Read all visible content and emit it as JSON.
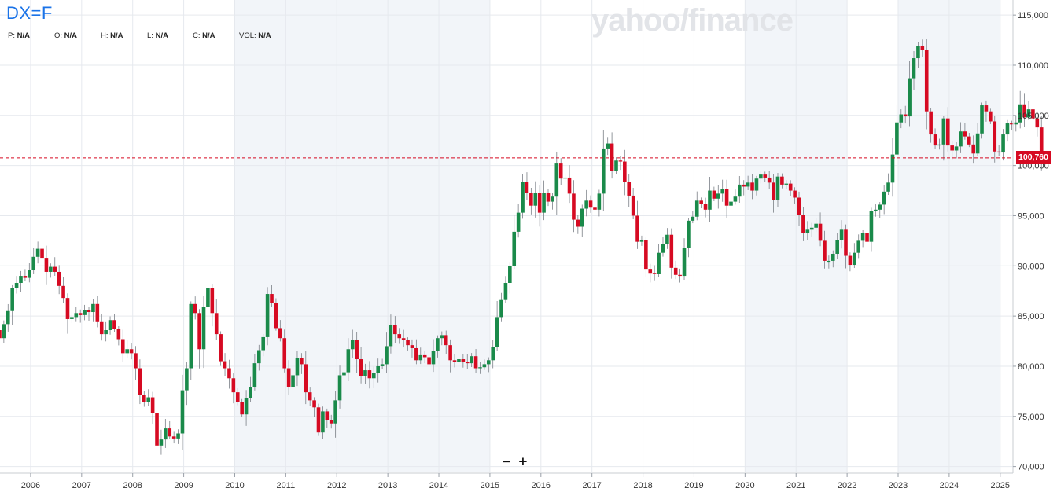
{
  "ticker": "DX=F",
  "ohlc": [
    {
      "key": "P:",
      "value": "N/A"
    },
    {
      "key": "O:",
      "value": "N/A"
    },
    {
      "key": "H:",
      "value": "N/A"
    },
    {
      "key": "L:",
      "value": "N/A"
    },
    {
      "key": "C:",
      "value": "N/A"
    },
    {
      "key": "VOL:",
      "value": "N/A"
    }
  ],
  "watermark": "yahoo/finance",
  "zoom": {
    "out": "−",
    "in": "+"
  },
  "colors": {
    "up": "#1a8a4a",
    "down": "#d60a22",
    "grid": "#e6e9ee",
    "band": "#f2f5f9",
    "axis_text": "#333333"
  },
  "chart_data": {
    "type": "candlestick",
    "title": "",
    "xlabel": "",
    "ylabel": "",
    "ylim": [
      69.5,
      116.5
    ],
    "xlim": [
      2005.4,
      2025.25
    ],
    "x_ticks": [
      "2006",
      "2007",
      "2008",
      "2009",
      "2010",
      "2011",
      "2012",
      "2013",
      "2014",
      "2015",
      "2016",
      "2017",
      "2018",
      "2019",
      "2020",
      "2021",
      "2022",
      "2023",
      "2024",
      "2025"
    ],
    "y_ticks": [
      "70,000",
      "75,000",
      "80,000",
      "85,000",
      "90,000",
      "95,000",
      "100,000",
      "105,000",
      "110,000",
      "115,000"
    ],
    "last_price_label": "100,760",
    "last_price": 100.76,
    "shaded_ranges": [
      [
        2010,
        2015
      ],
      [
        2020,
        2022
      ],
      [
        2023,
        2025
      ]
    ],
    "grid": true,
    "monthly_close": [
      82.8,
      84.2,
      85.5,
      87.8,
      88.3,
      89.0,
      88.8,
      89.6,
      90.9,
      91.7,
      90.8,
      89.4,
      89.9,
      89.4,
      88.0,
      86.8,
      84.7,
      84.9,
      85.3,
      85.1,
      85.6,
      85.4,
      86.2,
      84.4,
      83.2,
      83.6,
      84.6,
      83.7,
      82.7,
      81.3,
      81.7,
      81.3,
      79.8,
      77.1,
      76.4,
      76.9,
      75.3,
      72.1,
      72.7,
      73.8,
      73.0,
      72.8,
      73.3,
      77.6,
      79.8,
      86.2,
      85.3,
      81.7,
      85.9,
      87.8,
      85.3,
      83.2,
      80.5,
      79.8,
      78.8,
      77.4,
      76.4,
      75.2,
      76.8,
      77.9,
      80.3,
      81.6,
      82.9,
      87.2,
      86.3,
      83.8,
      82.8,
      79.8,
      77.9,
      79.1,
      80.8,
      80.2,
      77.4,
      76.6,
      75.9,
      73.4,
      75.5,
      74.6,
      74.3,
      76.6,
      79.1,
      79.4,
      81.7,
      82.6,
      80.7,
      79.0,
      79.6,
      78.8,
      79.3,
      80.0,
      80.2,
      82.0,
      84.1,
      83.2,
      82.8,
      82.6,
      82.1,
      81.8,
      80.6,
      81.1,
      80.9,
      80.2,
      81.5,
      82.8,
      83.1,
      82.1,
      80.6,
      80.4,
      80.7,
      80.4,
      80.3,
      81.0,
      79.8,
      79.9,
      80.2,
      80.6,
      81.9,
      84.9,
      86.6,
      88.3,
      90.0,
      93.4,
      95.3,
      98.4,
      97.3,
      96.0,
      97.3,
      95.3,
      97.3,
      96.4,
      96.9,
      100.2,
      98.7,
      98.8,
      97.2,
      94.6,
      93.9,
      95.7,
      96.5,
      95.8,
      95.6,
      97.2,
      101.7,
      102.2,
      99.5,
      100.5,
      100.4,
      98.4,
      97.0,
      95.0,
      92.4,
      92.6,
      89.7,
      89.3,
      89.2,
      91.3,
      92.2,
      93.1,
      89.8,
      89.1,
      89.0,
      91.8,
      94.5,
      94.9,
      96.5,
      96.2,
      95.6,
      97.5,
      96.7,
      97.2,
      97.7,
      96.0,
      96.4,
      96.9,
      98.1,
      97.9,
      98.3,
      97.5,
      98.7,
      99.1,
      98.8,
      98.3,
      96.6,
      98.9,
      98.1,
      98.2,
      97.5,
      96.8,
      95.1,
      93.3,
      93.6,
      93.8,
      94.2,
      92.5,
      90.5,
      90.5,
      91.2,
      92.6,
      93.6,
      91.0,
      90.1,
      91.3,
      92.5,
      93.3,
      92.4,
      95.5,
      95.6,
      96.1,
      97.4,
      98.3,
      101.1,
      104.3,
      105.1,
      104.9,
      108.7,
      110.7,
      111.9,
      111.5,
      105.4,
      103.1,
      102.0,
      102.1,
      104.7,
      102.0,
      101.5,
      101.9,
      103.4,
      102.9,
      102.1,
      101.2,
      103.2,
      106.0,
      105.4,
      104.4,
      101.4,
      101.3,
      103.1,
      104.2,
      104.1,
      104.3,
      106.1,
      104.8,
      105.6,
      104.7,
      103.8,
      100.9
    ]
  }
}
